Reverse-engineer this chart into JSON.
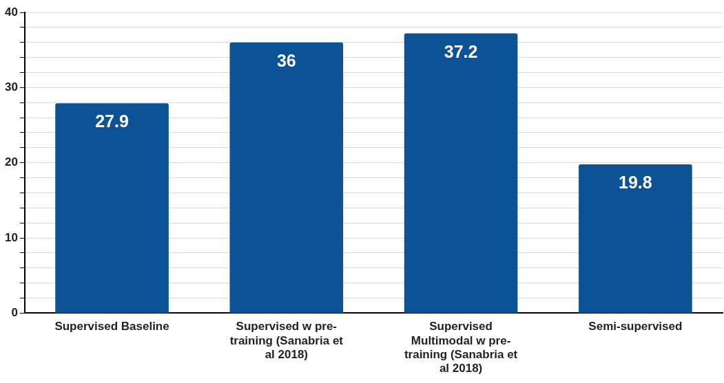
{
  "chart_data": {
    "type": "bar",
    "categories": [
      "Supervised Baseline",
      "Supervised w pre-training (Sanabria et al 2018)",
      "Supervised Multimodal w pre-training (Sanabria et al 2018)",
      "Semi-supervised"
    ],
    "values": [
      27.9,
      36,
      37.2,
      19.8
    ],
    "color": "#0e5296",
    "ylim": [
      0,
      40
    ],
    "yticks": [
      0,
      {
        "value": 2,
        "label": null
      },
      {
        "value": 4,
        "label": null
      },
      {
        "value": 6,
        "label": null
      },
      {
        "value": 8,
        "label": null
      },
      10,
      {
        "value": 12,
        "label": null
      },
      {
        "value": 14,
        "label": null
      },
      {
        "value": 16,
        "label": null
      },
      {
        "value": 18,
        "label": null
      },
      20,
      {
        "value": 22,
        "label": null
      },
      {
        "value": 24,
        "label": null
      },
      {
        "value": 26,
        "label": null
      },
      {
        "value": 28,
        "label": null
      },
      30,
      {
        "value": 32,
        "label": null
      },
      {
        "value": 34,
        "label": null
      },
      {
        "value": 36,
        "label": null
      },
      {
        "value": 38,
        "label": null
      },
      40
    ],
    "grid": "y",
    "data_labels": true
  }
}
